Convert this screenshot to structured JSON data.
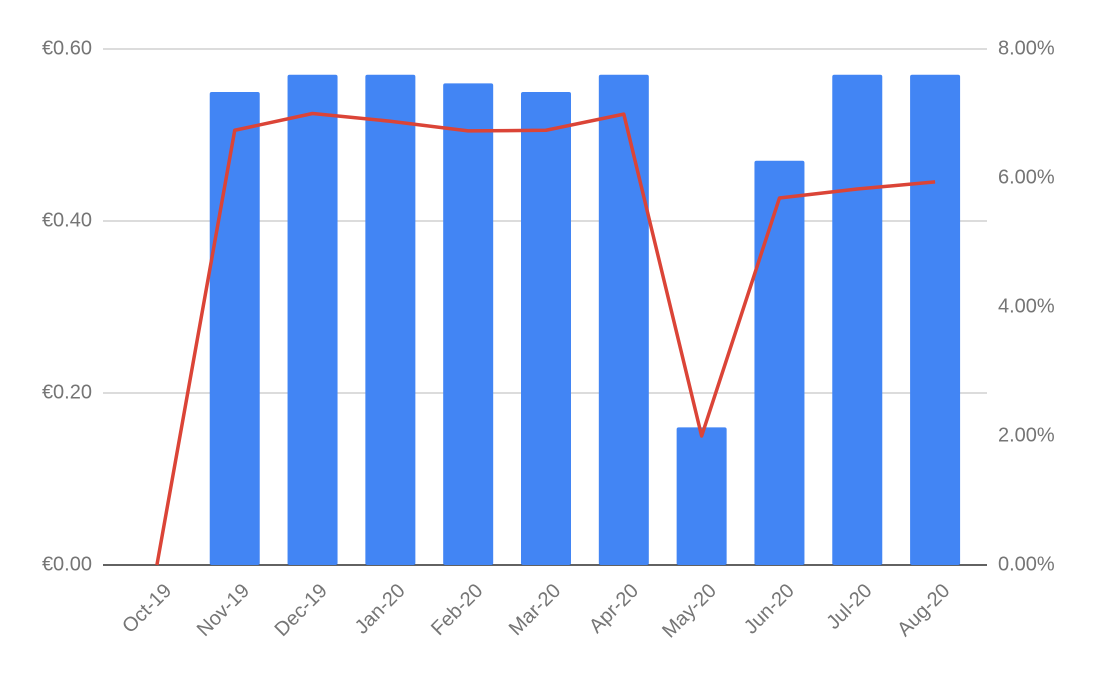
{
  "chart_data": {
    "type": "bar-line",
    "categories": [
      "Oct-19",
      "Nov-19",
      "Dec-19",
      "Jan-20",
      "Feb-20",
      "Mar-20",
      "Apr-20",
      "May-20",
      "Jun-20",
      "Jul-20",
      "Aug-20"
    ],
    "series": [
      {
        "type": "bar",
        "color": "#4285f4",
        "values": [
          0,
          0.55,
          0.57,
          0.57,
          0.56,
          0.55,
          0.57,
          0.16,
          0.47,
          0.57,
          0.57
        ]
      },
      {
        "type": "line",
        "color": "#db4437",
        "axis": "y2",
        "values": [
          0,
          6.74,
          7.0,
          6.88,
          6.73,
          6.74,
          6.99,
          2.0,
          5.69,
          5.83,
          5.94
        ]
      }
    ],
    "ylim": [
      0,
      0.6
    ],
    "yticks": [
      {
        "value": 0,
        "label": "€0.00"
      },
      {
        "value": 0.2,
        "label": "€0.20"
      },
      {
        "value": 0.4,
        "label": "€0.40"
      },
      {
        "value": 0.6,
        "label": "€0.60"
      }
    ],
    "y2lim": [
      0,
      8
    ],
    "y2ticks": [
      {
        "value": 0,
        "label": "0.00%"
      },
      {
        "value": 2,
        "label": "2.00%"
      },
      {
        "value": 4,
        "label": "4.00%"
      },
      {
        "value": 6,
        "label": "6.00%"
      },
      {
        "value": 8,
        "label": "8.00%"
      }
    ],
    "grid": true
  }
}
